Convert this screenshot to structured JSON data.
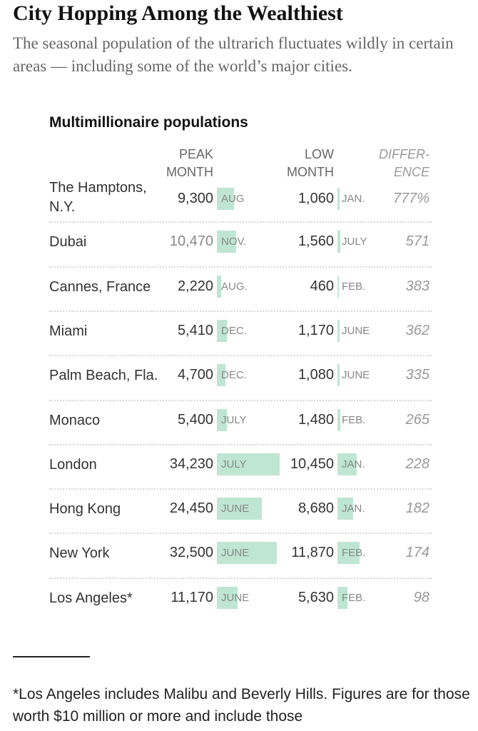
{
  "header": {
    "headline": "City Hopping Among the Wealthiest",
    "dek": "The seasonal population of the ultrarich fluctuates wildly in certain areas — including some of the world’s major cities."
  },
  "columns": {
    "peak": "PEAK MONTH",
    "low": "LOW MONTH",
    "diff": "DIFFER- ENCE"
  },
  "footnote": "*Los Angeles includes Malibu and Beverly Hills. Figures are for those worth $10 million or more and include those",
  "colors": {
    "bar": "#bfe5d3",
    "text": "#222222",
    "muted": "#888888"
  },
  "chart_data": {
    "type": "table",
    "title": "Multimillionaire populations",
    "rows": [
      {
        "city": "The Hamptons, N.Y.",
        "peak": 9300,
        "peak_label": "9,300",
        "peak_month": "AUG",
        "low": 1060,
        "low_label": "1,060",
        "low_month": "JAN.",
        "difference": "777%"
      },
      {
        "city": "Dubai",
        "peak": 10470,
        "peak_label": "10,470",
        "peak_month": "NOV.",
        "low": 1560,
        "low_label": "1,560",
        "low_month": "JULY",
        "difference": "571"
      },
      {
        "city": "Cannes, France",
        "peak": 2220,
        "peak_label": "2,220",
        "peak_month": "AUG.",
        "low": 460,
        "low_label": "460",
        "low_month": "FEB.",
        "difference": "383"
      },
      {
        "city": "Miami",
        "peak": 5410,
        "peak_label": "5,410",
        "peak_month": "DEC.",
        "low": 1170,
        "low_label": "1,170",
        "low_month": "JUNE",
        "difference": "362"
      },
      {
        "city": "Palm Beach, Fla.",
        "peak": 4700,
        "peak_label": "4,700",
        "peak_month": "DEC.",
        "low": 1080,
        "low_label": "1,080",
        "low_month": "JUNE",
        "difference": "335"
      },
      {
        "city": "Monaco",
        "peak": 5400,
        "peak_label": "5,400",
        "peak_month": "JULY",
        "low": 1480,
        "low_label": "1,480",
        "low_month": "FEB.",
        "difference": "265"
      },
      {
        "city": "London",
        "peak": 34230,
        "peak_label": "34,230",
        "peak_month": "JULY",
        "low": 10450,
        "low_label": "10,450",
        "low_month": "JAN.",
        "difference": "228"
      },
      {
        "city": "Hong Kong",
        "peak": 24450,
        "peak_label": "24,450",
        "peak_month": "JUNE",
        "low": 8680,
        "low_label": "8,680",
        "low_month": "JAN.",
        "difference": "182"
      },
      {
        "city": "New York",
        "peak": 32500,
        "peak_label": "32,500",
        "peak_month": "JUNE",
        "low": 11870,
        "low_label": "11,870",
        "low_month": "FEB.",
        "difference": "174"
      },
      {
        "city": "Los Angeles*",
        "peak": 11170,
        "peak_label": "11,170",
        "peak_month": "JUNE",
        "low": 5630,
        "low_label": "5,630",
        "low_month": "FEB.",
        "difference": "98"
      }
    ]
  }
}
